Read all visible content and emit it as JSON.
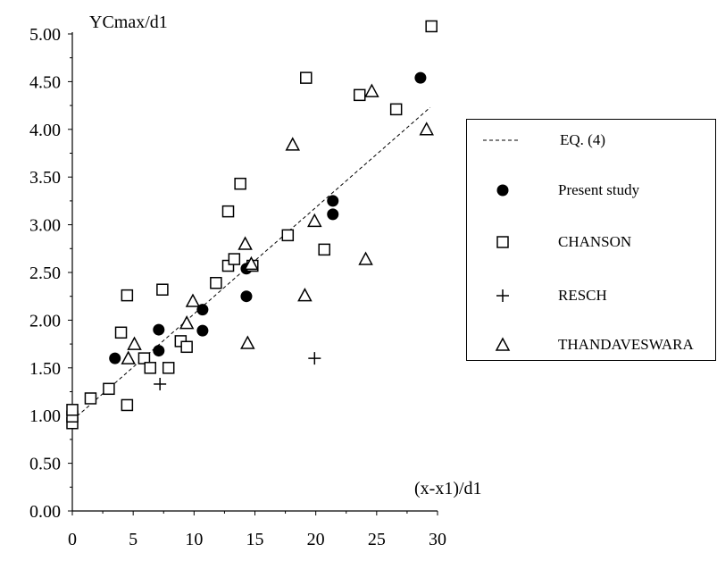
{
  "chart_data": {
    "type": "scatter",
    "ylabel": "YCmax/d1",
    "xlabel": "(x-x1)/d1",
    "xlim": [
      0,
      30
    ],
    "ylim": [
      0,
      5
    ],
    "x_ticks": [
      "0",
      "5",
      "10",
      "15",
      "20",
      "25",
      "30"
    ],
    "y_ticks": [
      "0.00",
      "0.50",
      "1.00",
      "1.50",
      "2.00",
      "2.50",
      "3.00",
      "3.50",
      "4.00",
      "4.50",
      "5.00"
    ],
    "grid": false,
    "legend_position": "right",
    "series": [
      {
        "name": "EQ. (4)",
        "marker": "dashed-line",
        "points": [
          [
            0,
            0.95
          ],
          [
            29.4,
            4.23
          ]
        ]
      },
      {
        "name": "Present study",
        "marker": "filled-circle",
        "points": [
          [
            3.5,
            1.6
          ],
          [
            7.1,
            1.9
          ],
          [
            7.1,
            1.68
          ],
          [
            10.7,
            2.11
          ],
          [
            10.7,
            1.89
          ],
          [
            14.3,
            2.25
          ],
          [
            14.3,
            2.54
          ],
          [
            21.4,
            3.25
          ],
          [
            21.4,
            3.11
          ],
          [
            28.6,
            4.54
          ]
        ]
      },
      {
        "name": "CHANSON",
        "marker": "open-square",
        "points": [
          [
            0,
            0.92
          ],
          [
            0,
            0.99
          ],
          [
            0,
            1.06
          ],
          [
            1.5,
            1.18
          ],
          [
            3,
            1.28
          ],
          [
            4.5,
            1.11
          ],
          [
            4,
            1.87
          ],
          [
            4.5,
            2.26
          ],
          [
            5.9,
            1.6
          ],
          [
            6.4,
            1.5
          ],
          [
            7.4,
            2.32
          ],
          [
            7.9,
            1.5
          ],
          [
            8.9,
            1.78
          ],
          [
            9.4,
            1.72
          ],
          [
            11.8,
            2.39
          ],
          [
            12.8,
            2.57
          ],
          [
            12.8,
            3.14
          ],
          [
            13.3,
            2.64
          ],
          [
            13.8,
            3.43
          ],
          [
            14.8,
            2.57
          ],
          [
            17.7,
            2.89
          ],
          [
            19.2,
            4.54
          ],
          [
            20.7,
            2.74
          ],
          [
            23.6,
            4.36
          ],
          [
            26.6,
            4.21
          ],
          [
            29.5,
            5.08
          ]
        ]
      },
      {
        "name": "RESCH",
        "marker": "plus",
        "points": [
          [
            7.2,
            1.33
          ],
          [
            19.9,
            1.6
          ]
        ]
      },
      {
        "name": "THANDAVESWARA",
        "marker": "open-triangle",
        "points": [
          [
            4.6,
            1.6
          ],
          [
            5.1,
            1.75
          ],
          [
            9.4,
            1.97
          ],
          [
            9.9,
            2.2
          ],
          [
            14.2,
            2.8
          ],
          [
            14.4,
            1.76
          ],
          [
            14.7,
            2.59
          ],
          [
            18.1,
            3.84
          ],
          [
            19.1,
            2.26
          ],
          [
            19.9,
            3.04
          ],
          [
            24.1,
            2.64
          ],
          [
            24.6,
            4.4
          ],
          [
            29.1,
            4.0
          ]
        ]
      }
    ]
  }
}
